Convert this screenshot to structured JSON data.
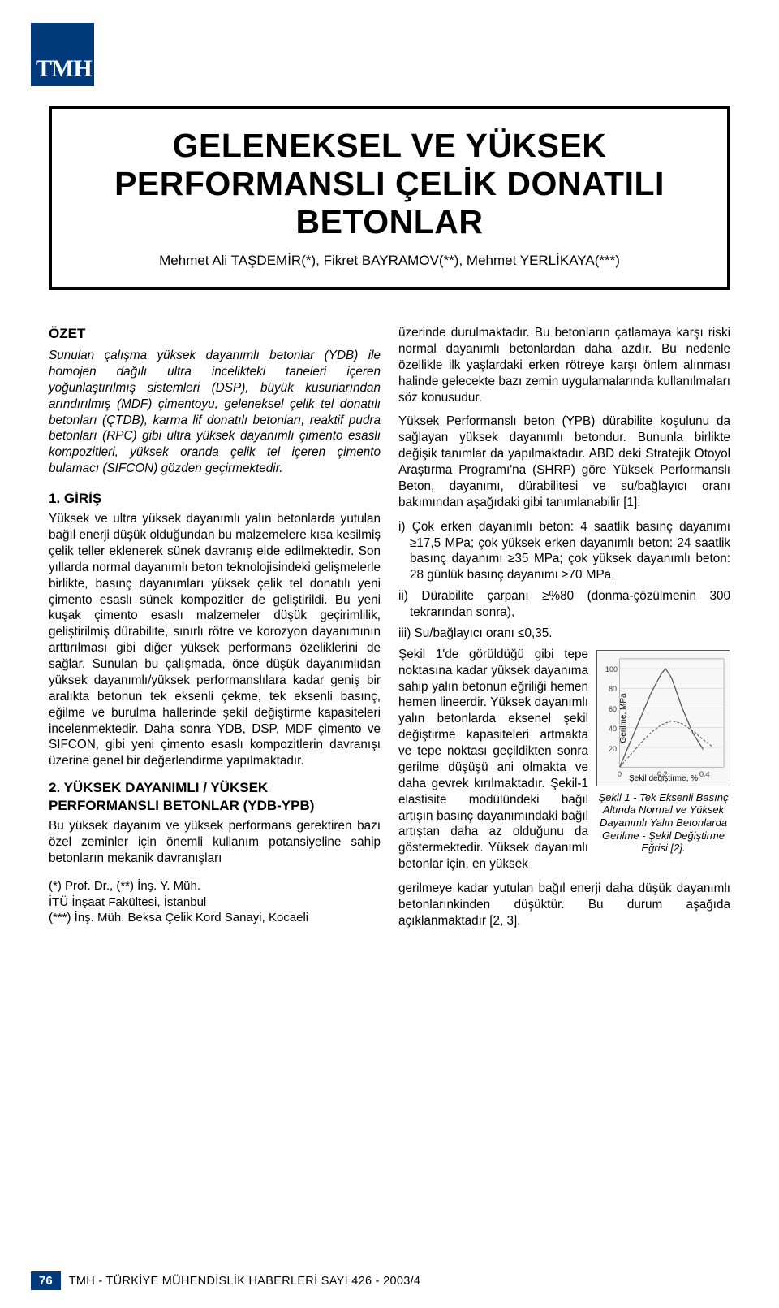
{
  "logo": {
    "text": "TMH",
    "fill": "#003a7a",
    "text_color": "#ffffff"
  },
  "title": {
    "line1": "GELENEKSEL VE YÜKSEK",
    "line2": "PERFORMANSLI ÇELİK DONATILI",
    "line3": "BETONLAR",
    "authors": "Mehmet Ali TAŞDEMİR(*), Fikret BAYRAMOV(**), Mehmet YERLİKAYA(***)"
  },
  "left": {
    "ozet_h": "ÖZET",
    "abstract": "Sunulan çalışma yüksek dayanımlı betonlar (YDB) ile homojen dağılı ultra incelikteki taneleri içeren yoğunlaştırılmış sistemleri (DSP), büyük kusurlarından arındırılmış (MDF) çimentoyu, geleneksel çelik tel donatılı betonları (ÇTDB), karma lif donatılı betonları, reaktif pudra betonları (RPC) gibi ultra yüksek dayanımlı çimento esaslı kompozitleri, yüksek oranda çelik tel içeren çimento bulamacı (SIFCON) gözden geçirmektedir.",
    "giris_h": "1. GİRİŞ",
    "p1": "Yüksek ve ultra yüksek dayanımlı yalın betonlarda yutulan bağıl enerji düşük olduğundan bu malzemelere kısa kesilmiş çelik teller eklenerek sünek davranış elde edilmektedir. Son yıllarda normal dayanımlı beton teknolojisindeki gelişmelerle birlikte, basınç dayanımları yüksek çelik tel donatılı yeni çimento esaslı sünek kompozitler de geliştirildi. Bu yeni kuşak çimento esaslı malzemeler düşük geçirimlilik, geliştirilmiş dürabilite, sınırlı rötre ve korozyon dayanımının arttırılması gibi diğer yüksek performans özeliklerini de sağlar. Sunulan bu çalışmada, önce düşük dayanımlıdan yüksek dayanımlı/yüksek performanslılara kadar geniş bir aralıkta betonun tek eksenli çekme, tek eksenli basınç, eğilme ve burulma hallerinde şekil değiştirme kapasiteleri incelenmektedir. Daha sonra YDB, DSP, MDF çimento ve SIFCON, gibi yeni çimento esaslı kompozitlerin davranışı üzerine genel bir değerlendirme yapılmaktadır.",
    "sec2_h": "2. YÜKSEK DAYANIMLI / YÜKSEK PERFORMANSLI BETONLAR (YDB-YPB)",
    "p2": "Bu yüksek dayanım ve yüksek performans gerektiren bazı özel zeminler için önemli kullanım potansiyeline sahip betonların mekanik davranışları",
    "cred1": "(*) Prof. Dr., (**) İnş. Y. Müh.",
    "cred2": "İTÜ İnşaat Fakültesi, İstanbul",
    "cred3": "(***) İnş. Müh. Beksa Çelik Kord Sanayi, Kocaeli"
  },
  "right": {
    "p1": "üzerinde durulmaktadır. Bu betonların çatlamaya karşı riski normal dayanımlı betonlardan daha azdır. Bu nedenle özellikle ilk yaşlardaki erken rötreye karşı önlem alınması halinde gelecekte bazı zemin uygulamalarında kullanılmaları söz konusudur.",
    "p2": "Yüksek Performanslı  beton (YPB) dürabilite koşulunu da sağlayan yüksek dayanımlı betondur. Bununla birlikte değişik tanımlar da yapılmaktadır. ABD deki Stratejik Otoyol Araştırma Programı'na (SHRP) göre Yüksek Performanslı Beton, dayanımı, dürabilitesi ve su/bağlayıcı oranı bakımından aşağıdaki gibi tanımlanabilir [1]:",
    "b1": "i) Çok erken dayanımlı beton: 4 saatlik basınç dayanımı ≥17,5 MPa; çok yüksek erken dayanımlı beton: 24 saatlik basınç dayanımı ≥35 MPa; çok yüksek dayanımlı beton: 28 günlük basınç dayanımı ≥70 MPa,",
    "b2": "ii) Dürabilite çarpanı ≥%80 (donma-çözülmenin 300 tekrarından sonra),",
    "b3": "iii) Su/bağlayıcı oranı ≤0,35.",
    "wrap": "Şekil 1'de görüldüğü gibi tepe noktasına kadar yüksek dayanıma sahip yalın betonun eğriliği hemen hemen lineerdir. Yüksek dayanımlı yalın betonlarda eksenel şekil değiştirme kapasiteleri artmakta ve tepe noktası geçildikten sonra gerilme düşüşü ani olmakta ve daha gevrek kırılmaktadır. Şekil-1 elastisite modülündeki bağıl artışın basınç dayanımındaki bağıl artıştan daha az olduğunu da göstermektedir. Yüksek dayanımlı betonlar için, en yüksek",
    "p3": "gerilmeye kadar yutulan bağıl enerji daha düşük dayanımlı betonlarınkinden düşüktür. Bu durum aşağıda açıklanmaktadır [2, 3].",
    "fig_caption": "Şekil 1 - Tek Eksenli Basınç Altında Normal ve Yüksek Dayanımlı Yalın Betonlarda Gerilme - Şekil Değiştirme Eğrisi [2]."
  },
  "chart": {
    "type": "line",
    "x_label": "Şekil değiştirme, %",
    "y_label": "Gerilme, MPa",
    "xlim": [
      0,
      0.5
    ],
    "ylim": [
      0,
      110
    ],
    "xticks": [
      0,
      0.2,
      0.4
    ],
    "yticks": [
      20,
      40,
      60,
      80,
      100
    ],
    "background": "#f7f7f7",
    "grid_color": "#bcbcbc",
    "line_color_high": "#555555",
    "line_color_normal": "#555555",
    "series_high": [
      [
        0,
        0
      ],
      [
        0.05,
        25
      ],
      [
        0.1,
        50
      ],
      [
        0.15,
        75
      ],
      [
        0.2,
        95
      ],
      [
        0.22,
        100
      ],
      [
        0.25,
        90
      ],
      [
        0.3,
        60
      ],
      [
        0.35,
        35
      ],
      [
        0.4,
        18
      ]
    ],
    "series_normal": [
      [
        0,
        0
      ],
      [
        0.05,
        12
      ],
      [
        0.1,
        24
      ],
      [
        0.15,
        35
      ],
      [
        0.2,
        43
      ],
      [
        0.25,
        47
      ],
      [
        0.3,
        44
      ],
      [
        0.35,
        37
      ],
      [
        0.4,
        28
      ],
      [
        0.45,
        20
      ]
    ]
  },
  "footer": {
    "page": "76",
    "text": "TMH - TÜRKİYE MÜHENDİSLİK HABERLERİ SAYI 426 - 2003/4"
  }
}
